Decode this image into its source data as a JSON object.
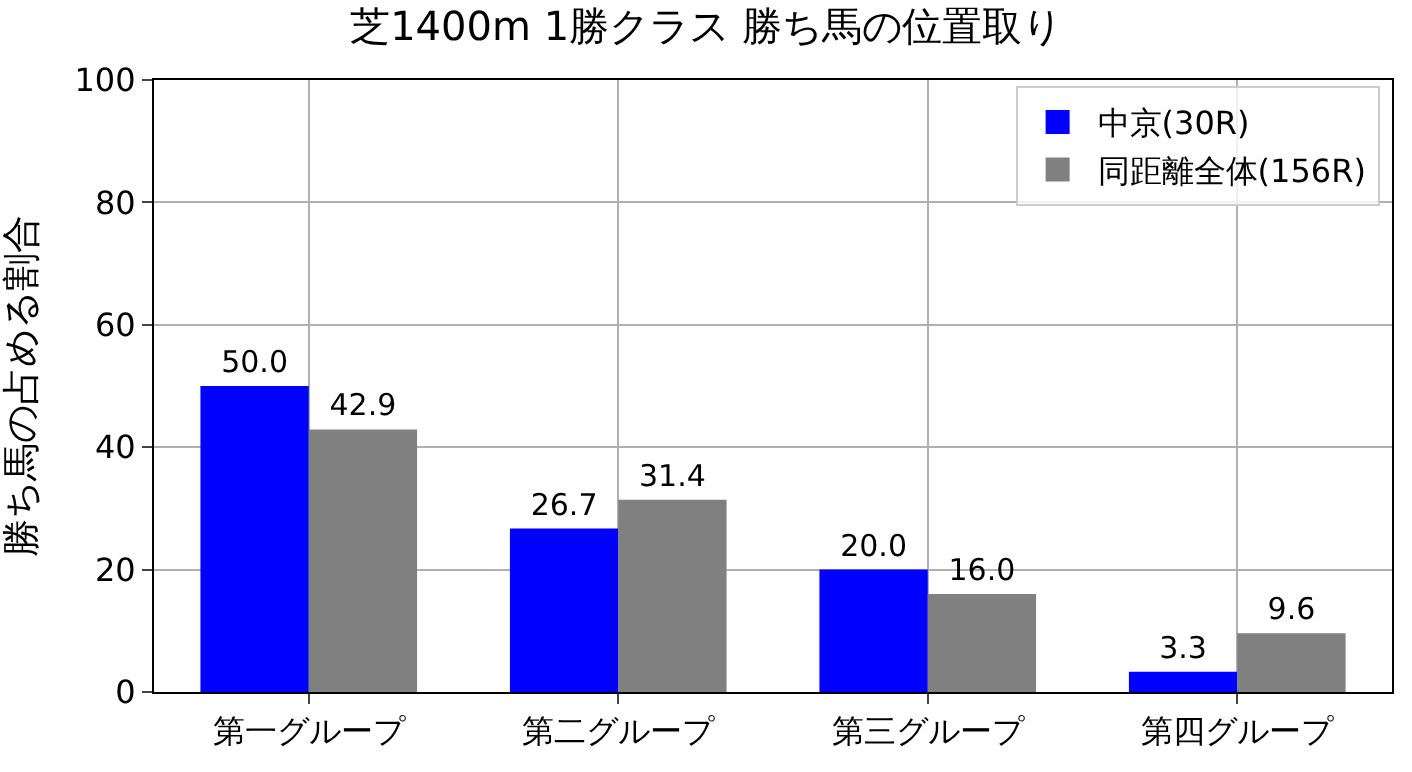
{
  "chart_data": {
    "type": "bar",
    "title": "芝1400m 1勝クラス 勝ち馬の位置取り",
    "ylabel": "勝ち馬の占める割合",
    "categories": [
      "第一グループ",
      "第二グループ",
      "第三グループ",
      "第四グループ"
    ],
    "series": [
      {
        "name": "中京(30R)",
        "color": "#0000ff",
        "values": [
          50.0,
          26.7,
          20.0,
          3.3
        ],
        "value_labels": [
          "50.0",
          "26.7",
          "20.0",
          "3.3"
        ]
      },
      {
        "name": "同距離全体(156R)",
        "color": "#808080",
        "values": [
          42.9,
          31.4,
          16.0,
          9.6
        ],
        "value_labels": [
          "42.9",
          "31.4",
          "16.0",
          "9.6"
        ]
      }
    ],
    "ylim": [
      0,
      100
    ],
    "yticks": [
      0,
      20,
      40,
      60,
      80,
      100
    ],
    "grid": true,
    "legend": "top right"
  }
}
